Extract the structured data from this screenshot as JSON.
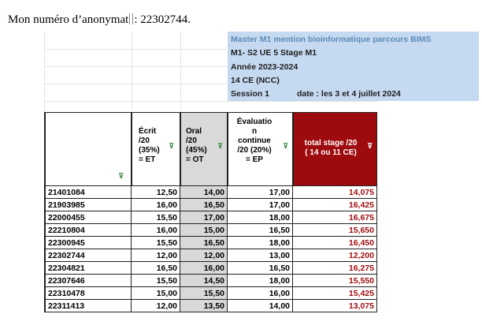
{
  "doc": {
    "anonymat_text": "Mon numéro d’anonymat",
    "anonymat_value": ": 22302744."
  },
  "info": {
    "title": "Master M1 mention bioinformatique parcours BIMS",
    "course": "M1- S2 UE 5 Stage M1",
    "year": "Année 2023-2024",
    "credits": "14 CE (NCC)",
    "session": "Session 1",
    "date": "date : les 3 et 4 juillet 2024"
  },
  "headers": {
    "ecrit": [
      "Écrit",
      "/20",
      "(35%)",
      "= ET"
    ],
    "oral": [
      "Oral",
      "/20",
      "(45%)",
      "= OT"
    ],
    "eval": [
      "Évaluatio",
      "n",
      "continue",
      "/20 (20%)",
      "= EP"
    ],
    "total": [
      "total stage /20",
      "( 14 ou 11 CE)"
    ]
  },
  "rows": [
    {
      "id": "21401084",
      "et": "12,50",
      "ot": "14,00",
      "ep": "17,00",
      "total": "14,075"
    },
    {
      "id": "21903985",
      "et": "16,00",
      "ot": "16,50",
      "ep": "17,00",
      "total": "16,425"
    },
    {
      "id": "22000455",
      "et": "15,50",
      "ot": "17,00",
      "ep": "18,00",
      "total": "16,675"
    },
    {
      "id": "22210804",
      "et": "16,00",
      "ot": "15,00",
      "ep": "16,50",
      "total": "15,650"
    },
    {
      "id": "22300945",
      "et": "15,50",
      "ot": "16,50",
      "ep": "18,00",
      "total": "16,450"
    },
    {
      "id": "22302744",
      "et": "12,00",
      "ot": "12,00",
      "ep": "13,00",
      "total": "12,200"
    },
    {
      "id": "22304821",
      "et": "16,50",
      "ot": "16,00",
      "ep": "16,50",
      "total": "16,275"
    },
    {
      "id": "22307646",
      "et": "15,50",
      "ot": "14,50",
      "ep": "18,00",
      "total": "15,550"
    },
    {
      "id": "22310478",
      "et": "15,00",
      "ot": "15,50",
      "ep": "16,00",
      "total": "15,425"
    },
    {
      "id": "22311413",
      "et": "12,00",
      "ot": "13,50",
      "ep": "14,00",
      "total": "13,075"
    }
  ]
}
